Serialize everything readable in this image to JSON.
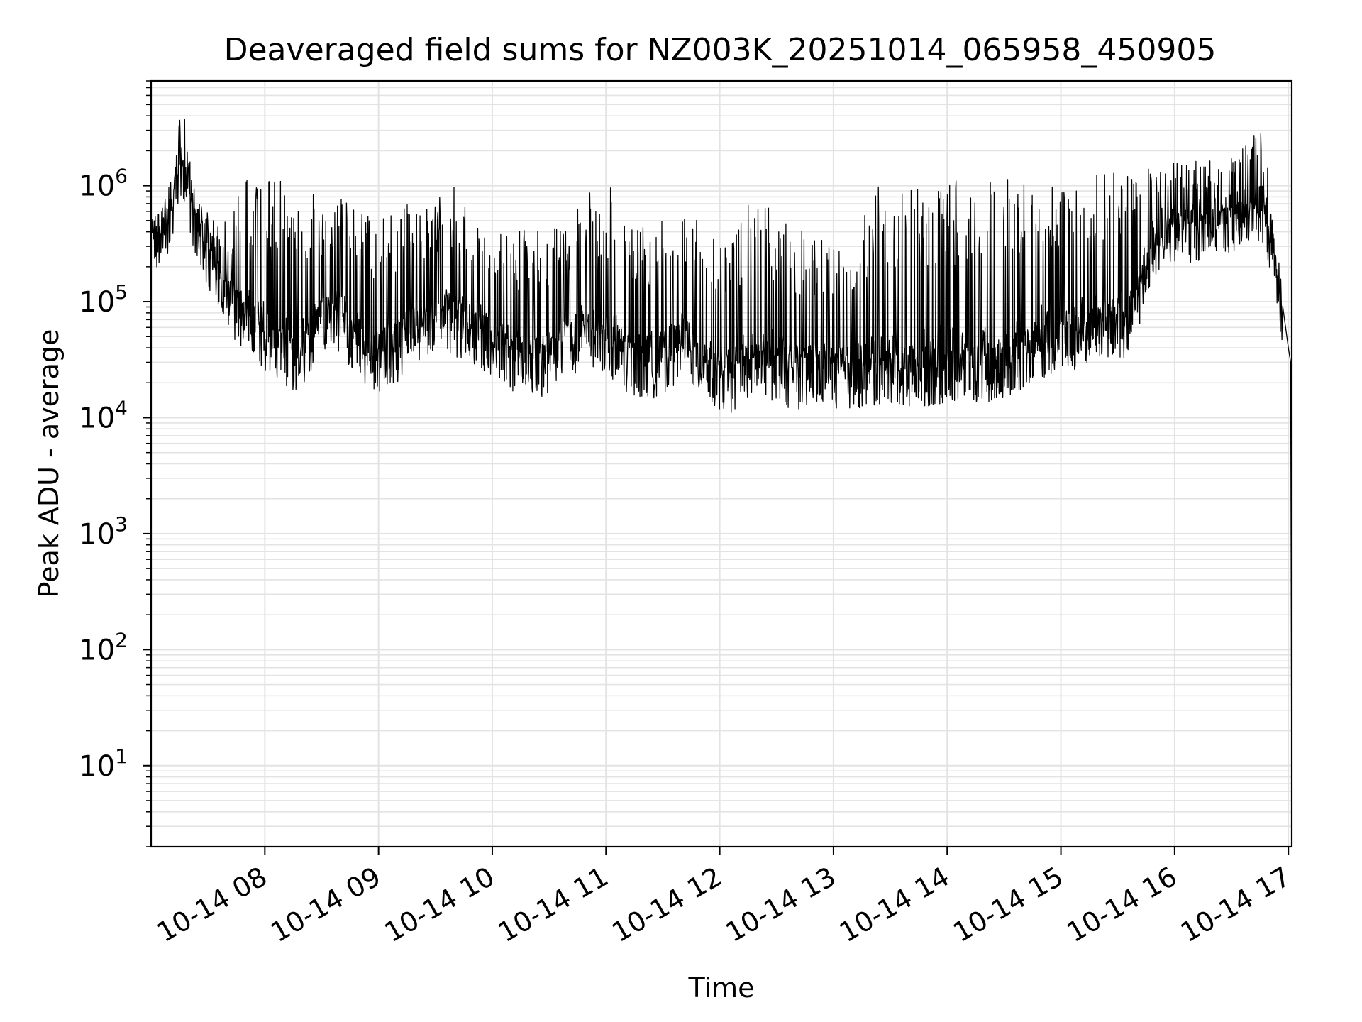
{
  "chart_data": {
    "type": "line",
    "title": "Deaveraged field sums for NZ003K_20251014_065958_450905",
    "xlabel": "Time",
    "ylabel": "Peak ADU - average",
    "yscale": "log",
    "grid": true,
    "x_tick_labels": [
      "10-14 08",
      "10-14 09",
      "10-14 10",
      "10-14 11",
      "10-14 12",
      "10-14 13",
      "10-14 14",
      "10-14 15",
      "10-14 16",
      "10-14 17"
    ],
    "x_tick_hours": [
      8,
      9,
      10,
      11,
      12,
      13,
      14,
      15,
      16,
      17
    ],
    "xlim_hours": [
      7.0,
      17.03
    ],
    "y_ticks": [
      {
        "base": "10",
        "exp": "1",
        "value": 10
      },
      {
        "base": "10",
        "exp": "2",
        "value": 100
      },
      {
        "base": "10",
        "exp": "3",
        "value": 1000
      },
      {
        "base": "10",
        "exp": "4",
        "value": 10000
      },
      {
        "base": "10",
        "exp": "5",
        "value": 100000
      },
      {
        "base": "10",
        "exp": "6",
        "value": 1000000
      }
    ],
    "ylim": [
      2,
      8000000
    ],
    "line_color": "#000000",
    "series": [
      {
        "x_hours": [
          7.0,
          7.1,
          7.2,
          7.25,
          7.3,
          7.35,
          7.4,
          7.5,
          7.6,
          7.7,
          7.8,
          7.9,
          8.0,
          8.1,
          8.2,
          8.3,
          8.4,
          8.5,
          8.6,
          8.7,
          8.8,
          8.9,
          9.0,
          9.1,
          9.2,
          9.3,
          9.4,
          9.5,
          9.6,
          9.7,
          9.8,
          9.9,
          10.0,
          10.1,
          10.2,
          10.3,
          10.4,
          10.5,
          10.6,
          10.7,
          10.8,
          10.9,
          11.0,
          11.1,
          11.2,
          11.3,
          11.4,
          11.5,
          11.6,
          11.7,
          11.8,
          11.9,
          12.0,
          12.1,
          12.2,
          12.3,
          12.4,
          12.5,
          12.6,
          12.7,
          12.8,
          12.9,
          13.0,
          13.1,
          13.2,
          13.3,
          13.4,
          13.5,
          13.6,
          13.7,
          13.8,
          13.9,
          14.0,
          14.1,
          14.2,
          14.3,
          14.4,
          14.5,
          14.6,
          14.7,
          14.8,
          14.9,
          15.0,
          15.1,
          15.2,
          15.3,
          15.4,
          15.5,
          15.6,
          15.7,
          15.8,
          15.9,
          16.0,
          16.1,
          16.2,
          16.3,
          16.4,
          16.5,
          16.6,
          16.7,
          16.8,
          16.85,
          16.9,
          16.95,
          17.0,
          17.02,
          17.03
        ],
        "y_base": [
          400000,
          350000,
          700000,
          1500000,
          1200000,
          700000,
          400000,
          250000,
          150000,
          100000,
          70000,
          60000,
          45000,
          35000,
          32000,
          30000,
          45000,
          60000,
          70000,
          60000,
          45000,
          35000,
          30000,
          35000,
          40000,
          50000,
          60000,
          70000,
          70000,
          60000,
          55000,
          50000,
          40000,
          35000,
          30000,
          28000,
          27000,
          30000,
          35000,
          40000,
          50000,
          45000,
          40000,
          35000,
          30000,
          28000,
          27000,
          30000,
          35000,
          40000,
          30000,
          25000,
          22000,
          20000,
          25000,
          30000,
          28000,
          25000,
          23000,
          22000,
          22000,
          24000,
          23000,
          22000,
          22000,
          23000,
          24000,
          25000,
          24000,
          23000,
          23000,
          24000,
          25000,
          24000,
          24000,
          25000,
          26000,
          27000,
          30000,
          35000,
          40000,
          42000,
          45000,
          47000,
          50000,
          52000,
          55000,
          58000,
          60000,
          120000,
          300000,
          350000,
          380000,
          400000,
          420000,
          430000,
          450000,
          480000,
          500000,
          600000,
          500000,
          300000,
          150000,
          80000,
          40000,
          30000,
          4
        ],
        "y_peak": [
          500000,
          500000,
          1000000,
          3800000,
          4000000,
          2000000,
          800000,
          600000,
          500000,
          500000,
          1300000,
          1000000,
          1100000,
          1100000,
          1100000,
          600000,
          1200000,
          700000,
          700000,
          800000,
          700000,
          600000,
          500000,
          600000,
          700000,
          700000,
          700000,
          700000,
          1000000,
          1000000,
          500000,
          500000,
          400000,
          450000,
          400000,
          450000,
          450000,
          450000,
          500000,
          400000,
          1000000,
          1000000,
          1000000,
          900000,
          500000,
          450000,
          500000,
          500000,
          700000,
          700000,
          500000,
          400000,
          300000,
          300000,
          700000,
          800000,
          800000,
          600000,
          450000,
          450000,
          400000,
          350000,
          300000,
          250000,
          400000,
          700000,
          1000000,
          1000000,
          1000000,
          1000000,
          1000000,
          1000000,
          1100000,
          1100000,
          1100000,
          1100000,
          1100000,
          1100000,
          1200000,
          1200000,
          1200000,
          1200000,
          1200000,
          1300000,
          1300000,
          1300000,
          1300000,
          1300000,
          1300000,
          1300000,
          1500000,
          1500000,
          1600000,
          1600000,
          1700000,
          1800000,
          1900000,
          2000000,
          2500000,
          4000000,
          2500000,
          600000,
          200000,
          100000,
          50000,
          40000,
          4
        ]
      }
    ]
  }
}
